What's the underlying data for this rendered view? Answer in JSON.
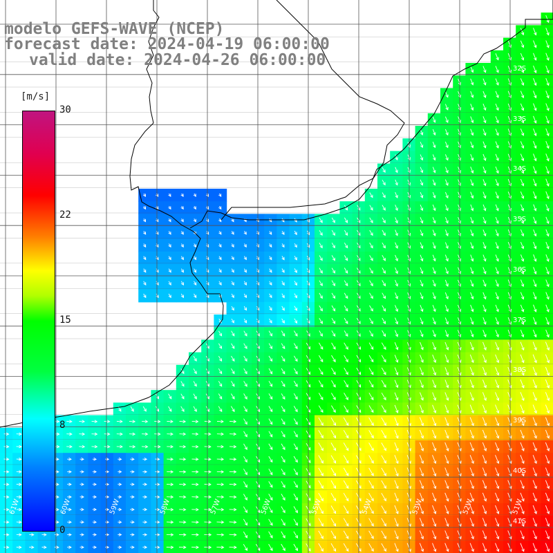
{
  "header": {
    "model": "modelo GEFS-WAVE (NCEP)",
    "forecast": "forecast date: 2024-04-19 06:00:00",
    "valid": "valid date: 2024-04-26 06:00:00"
  },
  "colorbar": {
    "unit": "[m/s]",
    "ticks": [
      "30",
      "22",
      "15",
      "8",
      "0"
    ],
    "tick_values": [
      30,
      22,
      15,
      8,
      0
    ],
    "range": [
      0,
      30
    ]
  },
  "map": {
    "lat_labels": [
      "32S",
      "33S",
      "34S",
      "35S",
      "36S",
      "37S",
      "38S",
      "39S",
      "40S",
      "41S"
    ],
    "lon_labels": [
      "61W",
      "60W",
      "59W",
      "58W",
      "57W",
      "56W",
      "55W",
      "54W",
      "53W",
      "52W",
      "51W"
    ],
    "colors": {
      "land": "#ffffff",
      "coast": "#000000",
      "grid": "#555555",
      "arrow": "#ffffff"
    }
  }
}
